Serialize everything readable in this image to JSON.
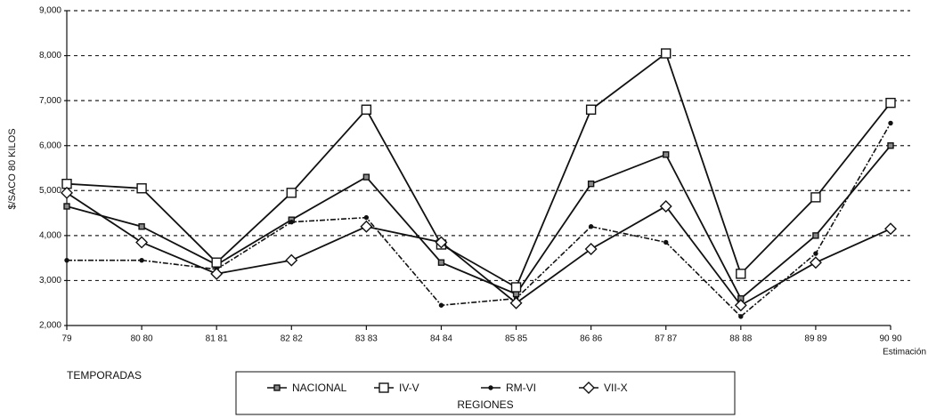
{
  "chart_data": {
    "type": "line",
    "y_label": "$/SACO 80 KILOS",
    "x_label": "TEMPORADAS",
    "x_note": "Estimación",
    "legend_title": "REGIONES",
    "categories": [
      "79",
      "80 80",
      "81 81",
      "82 82",
      "83 83",
      "84 84",
      "85 85",
      "86 86",
      "87 87",
      "88 88",
      "89 89",
      "90 90"
    ],
    "ylim": [
      2000,
      9000
    ],
    "yticks": [
      {
        "value": 2000,
        "label": "2,000"
      },
      {
        "value": 3000,
        "label": "3,000"
      },
      {
        "value": 4000,
        "label": "4,000"
      },
      {
        "value": 5000,
        "label": "5,000"
      },
      {
        "value": 6000,
        "label": "6,000"
      },
      {
        "value": 7000,
        "label": "7,000"
      },
      {
        "value": 8000,
        "label": "8,000"
      },
      {
        "value": 9000,
        "label": "9,000"
      }
    ],
    "grid": true,
    "series": [
      {
        "name": "NACIONAL",
        "color": "#111111",
        "marker": "small-square",
        "values": [
          4650,
          4200,
          3350,
          4350,
          5300,
          3400,
          2700,
          5150,
          5800,
          2600,
          4000,
          6000
        ]
      },
      {
        "name": "IV-V",
        "color": "#111111",
        "marker": "square",
        "values": [
          5150,
          5050,
          3400,
          4950,
          6800,
          3800,
          2850,
          6800,
          8050,
          3150,
          4850,
          6950
        ]
      },
      {
        "name": "RM-VI",
        "color": "#111111",
        "marker": "dot",
        "values": [
          3450,
          3450,
          3250,
          4300,
          4400,
          2450,
          2600,
          4200,
          3850,
          2200,
          3600,
          6500
        ]
      },
      {
        "name": "VII-X",
        "color": "#111111",
        "marker": "diamond",
        "values": [
          4950,
          3850,
          3150,
          3450,
          4200,
          3850,
          2500,
          3700,
          4650,
          2450,
          3400,
          4150
        ]
      }
    ]
  }
}
